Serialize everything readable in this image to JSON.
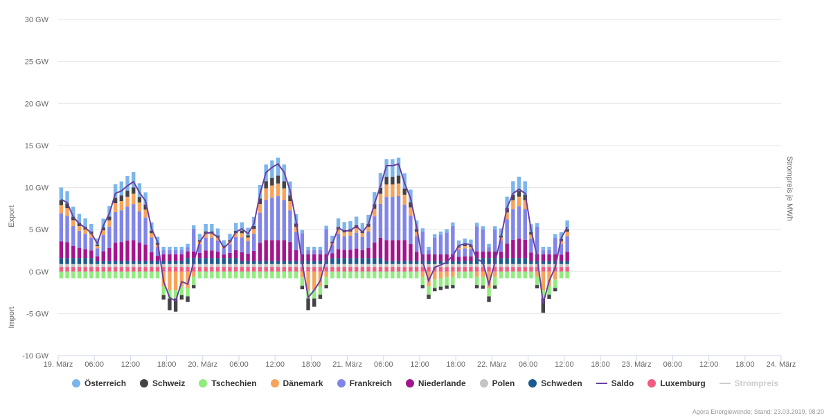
{
  "chart_data": {
    "type": "bar",
    "stacked": true,
    "y_axis_left_label_top": "Export",
    "y_axis_left_label_bottom": "Import",
    "y_axis_right_label": "Strompreis je MWh",
    "ylim": [
      -10,
      30
    ],
    "y_ticks": [
      "30 GW",
      "25 GW",
      "20 GW",
      "15 GW",
      "10 GW",
      "5 GW",
      "0 GW",
      "-5 GW",
      "-10 GW"
    ],
    "x_ticks": [
      "19. März",
      "06:00",
      "12:00",
      "18:00",
      "20. März",
      "06:00",
      "12:00",
      "18:00",
      "21. März",
      "06:00",
      "12:00",
      "18:00",
      "22. März",
      "06:00",
      "12:00",
      "18:00",
      "23. März",
      "06:00",
      "12:00",
      "18:00",
      "24. März"
    ],
    "x_range_hours": [
      0,
      120
    ],
    "hours_with_data": 85,
    "grid": true,
    "legend_position": "bottom",
    "series": [
      {
        "name": "Österreich",
        "color": "#7cb5ec"
      },
      {
        "name": "Schweiz",
        "color": "#434348"
      },
      {
        "name": "Tschechien",
        "color": "#90ed7d"
      },
      {
        "name": "Dänemark",
        "color": "#f7a35c"
      },
      {
        "name": "Frankreich",
        "color": "#8085e9"
      },
      {
        "name": "Niederlande",
        "color": "#a4148d"
      },
      {
        "name": "Polen",
        "color": "#c4c4c4"
      },
      {
        "name": "Schweden",
        "color": "#1b5a8f"
      },
      {
        "name": "Saldo",
        "color": "#6b3fa0",
        "type": "line"
      },
      {
        "name": "Luxemburg",
        "color": "#f15c80"
      },
      {
        "name": "Strompreis",
        "color": "#cccccc",
        "type": "line",
        "hidden": true
      }
    ],
    "saldo_keypoints": [
      [
        0,
        8.6
      ],
      [
        1,
        8.2
      ],
      [
        2,
        6.5
      ],
      [
        3,
        5.7
      ],
      [
        4,
        5.2
      ],
      [
        5,
        4.6
      ],
      [
        6,
        3.3
      ],
      [
        7,
        5.5
      ],
      [
        8,
        6.9
      ],
      [
        9,
        9.3
      ],
      [
        10,
        9.6
      ],
      [
        11,
        10.2
      ],
      [
        12,
        10.7
      ],
      [
        13,
        9.4
      ],
      [
        14,
        8.4
      ],
      [
        15,
        5.1
      ],
      [
        16,
        3.5
      ],
      [
        17,
        -1.2
      ],
      [
        18,
        -3.1
      ],
      [
        19,
        -3.5
      ],
      [
        20,
        -1.2
      ],
      [
        21,
        -1.5
      ],
      [
        22,
        1.2
      ],
      [
        23,
        3.5
      ],
      [
        24,
        4.6
      ],
      [
        25,
        4.6
      ],
      [
        26,
        4.1
      ],
      [
        27,
        2.8
      ],
      [
        28,
        3.5
      ],
      [
        29,
        4.7
      ],
      [
        30,
        5.1
      ],
      [
        31,
        4.5
      ],
      [
        32,
        5.7
      ],
      [
        33,
        9.2
      ],
      [
        34,
        11.8
      ],
      [
        35,
        12.4
      ],
      [
        36,
        12.8
      ],
      [
        37,
        11.8
      ],
      [
        38,
        9.6
      ],
      [
        39,
        6.0
      ],
      [
        40,
        1.0
      ],
      [
        41,
        -3.1
      ],
      [
        42,
        -2.2
      ],
      [
        43,
        -1.1
      ],
      [
        44,
        1.5
      ],
      [
        45,
        3.3
      ],
      [
        46,
        5.2
      ],
      [
        47,
        4.8
      ],
      [
        48,
        4.9
      ],
      [
        49,
        5.4
      ],
      [
        50,
        4.7
      ],
      [
        51,
        5.6
      ],
      [
        52,
        8.1
      ],
      [
        53,
        10.2
      ],
      [
        54,
        12.6
      ],
      [
        55,
        12.6
      ],
      [
        56,
        12.8
      ],
      [
        57,
        10.5
      ],
      [
        58,
        8.7
      ],
      [
        59,
        5.3
      ],
      [
        60,
        1.2
      ],
      [
        61,
        -1.1
      ],
      [
        62,
        0.5
      ],
      [
        63,
        0.8
      ],
      [
        64,
        1.1
      ],
      [
        65,
        1.9
      ],
      [
        66,
        3.1
      ],
      [
        67,
        3.3
      ],
      [
        68,
        3.2
      ],
      [
        69,
        1.5
      ],
      [
        70,
        1.1
      ],
      [
        71,
        -1.5
      ],
      [
        72,
        1.1
      ],
      [
        73,
        4.1
      ],
      [
        74,
        7.6
      ],
      [
        75,
        9.3
      ],
      [
        76,
        9.8
      ],
      [
        77,
        9.3
      ],
      [
        78,
        4.9
      ],
      [
        79,
        1.8
      ],
      [
        80,
        -3.8
      ],
      [
        81,
        -1.1
      ],
      [
        82,
        0.5
      ],
      [
        83,
        4.0
      ],
      [
        84,
        5.3
      ]
    ]
  },
  "credits": "Agora Energiewende; Stand: 23.03.2019, 08:20"
}
